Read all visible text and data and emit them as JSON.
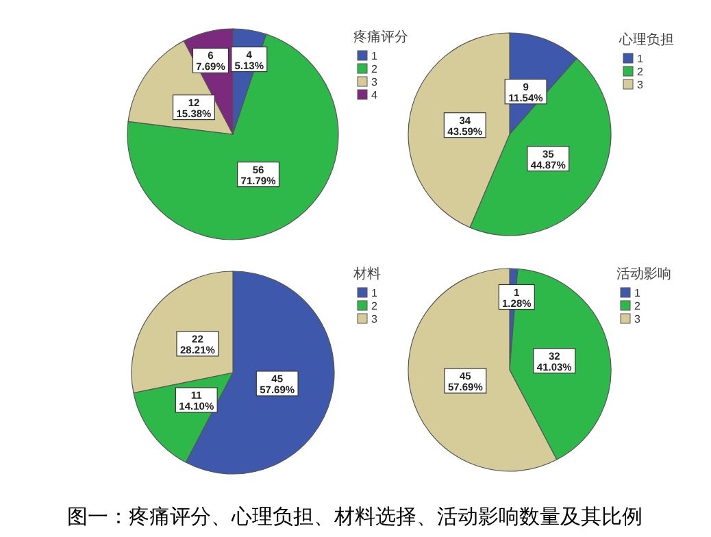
{
  "chart_data": [
    {
      "type": "pie",
      "legend_title": "疼痛评分",
      "categories": [
        "1",
        "2",
        "3",
        "4"
      ],
      "values": [
        4,
        56,
        12,
        6
      ],
      "colors": [
        "#3e58ac",
        "#2eb84a",
        "#d5cc9a",
        "#7b2a7e"
      ],
      "value_labels": [
        "4\n5.13%",
        "56\n71.79%",
        "12\n15.38%",
        "6\n7.69%"
      ],
      "legend": "top right",
      "annotations": [
        "图一：疼痛评分、心理负担、材料选择、活动影响数量及其比例"
      ]
    },
    {
      "type": "pie",
      "legend_title": "心理负担",
      "categories": [
        "1",
        "2",
        "3"
      ],
      "values": [
        9,
        35,
        34
      ],
      "colors": [
        "#3e58ac",
        "#2eb84a",
        "#d5cc9a"
      ],
      "value_labels": [
        "9\n11.54%",
        "35\n44.87%",
        "34\n43.59%"
      ],
      "legend": "top right"
    },
    {
      "type": "pie",
      "legend_title": "材料",
      "categories": [
        "1",
        "2",
        "3"
      ],
      "values": [
        45,
        11,
        22
      ],
      "colors": [
        "#3e58ac",
        "#2eb84a",
        "#d5cc9a"
      ],
      "value_labels": [
        "45\n57.69%",
        "11\n14.10%",
        "22\n28.21%"
      ],
      "legend": "top right"
    },
    {
      "type": "pie",
      "legend_title": "活动影响",
      "categories": [
        "1",
        "2",
        "3"
      ],
      "values": [
        1,
        32,
        45
      ],
      "colors": [
        "#3e58ac",
        "#2eb84a",
        "#d5cc9a"
      ],
      "value_labels": [
        "1\n1.28%",
        "32\n41.03%",
        "45\n57.69%"
      ],
      "legend": "top right"
    }
  ]
}
